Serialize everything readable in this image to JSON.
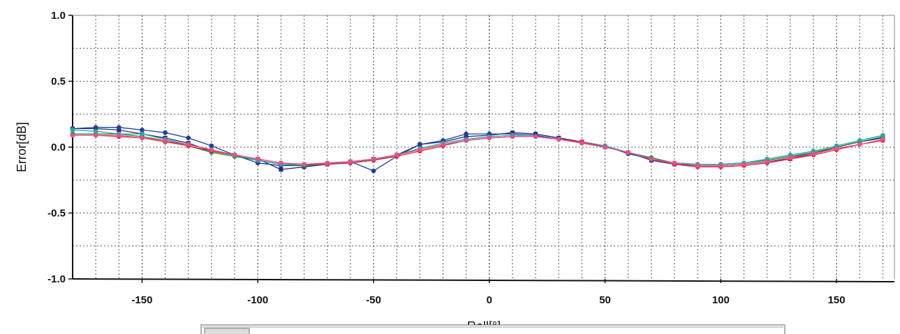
{
  "chart_data": {
    "type": "line",
    "title": "",
    "xlabel": "Roll[°]",
    "ylabel": "Error[dB]",
    "xlim": [
      -180,
      175
    ],
    "ylim": [
      -1.0,
      1.0
    ],
    "xticks": [
      -150,
      -100,
      -50,
      0,
      50,
      100,
      150
    ],
    "yticks": [
      1.0,
      0.5,
      0.0,
      -0.5,
      -1.0
    ],
    "ytick_labels": [
      "1.0",
      "0.5",
      "0.0",
      "-0.5",
      "-1.0"
    ],
    "grid": true,
    "x": [
      -180,
      -170,
      -160,
      -150,
      -140,
      -130,
      -120,
      -110,
      -100,
      -90,
      -80,
      -70,
      -60,
      -50,
      -40,
      -30,
      -20,
      -10,
      0,
      10,
      20,
      30,
      40,
      50,
      60,
      70,
      80,
      90,
      100,
      110,
      120,
      130,
      140,
      150,
      160,
      170
    ],
    "series": [
      {
        "color": "#1f2a80",
        "marker": "square",
        "values": [
          0.14,
          0.14,
          0.13,
          0.1,
          0.07,
          0.03,
          -0.03,
          -0.06,
          -0.09,
          -0.17,
          -0.15,
          -0.13,
          -0.11,
          -0.09,
          -0.06,
          0.02,
          0.04,
          0.08,
          0.09,
          0.11,
          0.1,
          0.07,
          0.04,
          0.0,
          -0.04,
          -0.1,
          -0.13,
          -0.14,
          -0.14,
          -0.13,
          -0.11,
          -0.09,
          -0.05,
          0.0,
          0.04,
          0.07
        ]
      },
      {
        "color": "#1b3fa0",
        "marker": "circle",
        "values": [
          0.14,
          0.15,
          0.15,
          0.13,
          0.11,
          0.07,
          0.01,
          -0.06,
          -0.12,
          -0.14,
          -0.14,
          -0.12,
          -0.11,
          -0.18,
          -0.07,
          0.02,
          0.05,
          0.1,
          0.1,
          0.1,
          0.09,
          0.06,
          0.04,
          0.01,
          -0.05,
          -0.09,
          -0.13,
          -0.14,
          -0.14,
          -0.13,
          -0.11,
          -0.08,
          -0.04,
          0.0,
          0.04,
          0.07
        ]
      },
      {
        "color": "#1e8a3a",
        "marker": "circle",
        "values": [
          0.1,
          0.1,
          0.1,
          0.08,
          0.05,
          0.01,
          -0.04,
          -0.07,
          -0.1,
          -0.13,
          -0.14,
          -0.13,
          -0.12,
          -0.1,
          -0.06,
          -0.02,
          0.02,
          0.05,
          0.07,
          0.08,
          0.08,
          0.06,
          0.03,
          0.0,
          -0.04,
          -0.08,
          -0.12,
          -0.13,
          -0.13,
          -0.12,
          -0.1,
          -0.07,
          -0.04,
          0.0,
          0.04,
          0.08
        ]
      },
      {
        "color": "#2aa7a0",
        "marker": "circle",
        "values": [
          0.13,
          0.12,
          0.1,
          0.1,
          0.06,
          0.02,
          -0.02,
          -0.06,
          -0.1,
          -0.13,
          -0.13,
          -0.13,
          -0.11,
          -0.1,
          -0.06,
          -0.01,
          0.03,
          0.06,
          0.08,
          0.09,
          0.08,
          0.06,
          0.04,
          0.01,
          -0.04,
          -0.09,
          -0.12,
          -0.13,
          -0.13,
          -0.12,
          -0.09,
          -0.06,
          -0.03,
          0.01,
          0.05,
          0.09
        ]
      },
      {
        "color": "#e0283c",
        "marker": "circle",
        "values": [
          0.09,
          0.09,
          0.08,
          0.07,
          0.04,
          0.01,
          -0.03,
          -0.06,
          -0.09,
          -0.12,
          -0.13,
          -0.13,
          -0.12,
          -0.1,
          -0.07,
          -0.03,
          0.01,
          0.05,
          0.07,
          0.08,
          0.08,
          0.06,
          0.04,
          0.0,
          -0.04,
          -0.09,
          -0.13,
          -0.15,
          -0.15,
          -0.14,
          -0.12,
          -0.09,
          -0.06,
          -0.02,
          0.02,
          0.05
        ]
      },
      {
        "color": "#e8508c",
        "marker": "circle",
        "values": [
          0.09,
          0.09,
          0.09,
          0.07,
          0.05,
          0.02,
          -0.02,
          -0.06,
          -0.09,
          -0.12,
          -0.13,
          -0.12,
          -0.11,
          -0.09,
          -0.06,
          -0.02,
          0.02,
          0.05,
          0.07,
          0.08,
          0.08,
          0.06,
          0.03,
          0.0,
          -0.04,
          -0.09,
          -0.12,
          -0.14,
          -0.14,
          -0.13,
          -0.11,
          -0.08,
          -0.05,
          -0.01,
          0.02,
          0.06
        ]
      }
    ]
  }
}
